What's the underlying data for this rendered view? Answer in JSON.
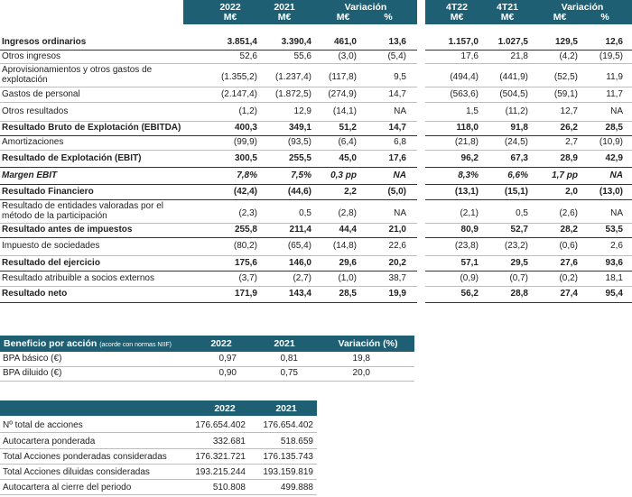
{
  "main": {
    "headers": {
      "y2022": "2022",
      "y2021": "2021",
      "var": "Variación",
      "meur": "M€",
      "pct": "%",
      "q4_22": "4T22",
      "q4_21": "4T21"
    },
    "rows": [
      {
        "label": "Ingresos ordinarios",
        "bold": true,
        "italic": false,
        "v": [
          "3.851,4",
          "3.390,4",
          "461,0",
          "13,6",
          "1.157,0",
          "1.027,5",
          "129,5",
          "12,6"
        ]
      },
      {
        "label": "Otros ingresos",
        "bold": false,
        "italic": false,
        "v": [
          "52,6",
          "55,6",
          "(3,0)",
          "(5,4)",
          "17,6",
          "21,8",
          "(4,2)",
          "(19,5)"
        ]
      },
      {
        "label": "Aprovisionamientos y otros gastos de explotación",
        "bold": false,
        "italic": false,
        "v": [
          "(1.355,2)",
          "(1.237,4)",
          "(117,8)",
          "9,5",
          "(494,4)",
          "(441,9)",
          "(52,5)",
          "11,9"
        ]
      },
      {
        "label": "Gastos de personal",
        "bold": false,
        "italic": false,
        "v": [
          "(2.147,4)",
          "(1.872,5)",
          "(274,9)",
          "14,7",
          "(563,6)",
          "(504,5)",
          "(59,1)",
          "11,7"
        ]
      },
      {
        "label": "Otros resultados",
        "bold": false,
        "italic": false,
        "v": [
          "(1,2)",
          "12,9",
          "(14,1)",
          "NA",
          "1,5",
          "(11,2)",
          "12,7",
          "NA"
        ]
      },
      {
        "label": "Resultado Bruto de Explotación (EBITDA)",
        "bold": true,
        "italic": false,
        "v": [
          "400,3",
          "349,1",
          "51,2",
          "14,7",
          "118,0",
          "91,8",
          "26,2",
          "28,5"
        ]
      },
      {
        "label": "Amortizaciones",
        "bold": false,
        "italic": false,
        "v": [
          "(99,9)",
          "(93,5)",
          "(6,4)",
          "6,8",
          "(21,8)",
          "(24,5)",
          "2,7",
          "(10,9)"
        ]
      },
      {
        "label": "Resultado de Explotación (EBIT)",
        "bold": true,
        "italic": false,
        "v": [
          "300,5",
          "255,5",
          "45,0",
          "17,6",
          "96,2",
          "67,3",
          "28,9",
          "42,9"
        ]
      },
      {
        "label": "Margen EBIT",
        "bold": true,
        "italic": true,
        "v": [
          "7,8%",
          "7,5%",
          "0,3 pp",
          "NA",
          "8,3%",
          "6,6%",
          "1,7 pp",
          "NA"
        ]
      },
      {
        "label": "Resultado Financiero",
        "bold": true,
        "italic": false,
        "v": [
          "(42,4)",
          "(44,6)",
          "2,2",
          "(5,0)",
          "(13,1)",
          "(15,1)",
          "2,0",
          "(13,0)"
        ]
      },
      {
        "label": "Resultado de entidades valoradas por el método de la participación",
        "bold": false,
        "italic": false,
        "v": [
          "(2,3)",
          "0,5",
          "(2,8)",
          "NA",
          "(2,1)",
          "0,5",
          "(2,6)",
          "NA"
        ]
      },
      {
        "label": "Resultado antes de impuestos",
        "bold": true,
        "italic": false,
        "v": [
          "255,8",
          "211,4",
          "44,4",
          "21,0",
          "80,9",
          "52,7",
          "28,2",
          "53,5"
        ]
      },
      {
        "label": "Impuesto de sociedades",
        "bold": false,
        "italic": false,
        "v": [
          "(80,2)",
          "(65,4)",
          "(14,8)",
          "22,6",
          "(23,8)",
          "(23,2)",
          "(0,6)",
          "2,6"
        ]
      },
      {
        "label": "Resultado del ejercicio",
        "bold": true,
        "italic": false,
        "v": [
          "175,6",
          "146,0",
          "29,6",
          "20,2",
          "57,1",
          "29,5",
          "27,6",
          "93,6"
        ]
      },
      {
        "label": "Resultado atribuible a socios externos",
        "bold": false,
        "italic": false,
        "v": [
          "(3,7)",
          "(2,7)",
          "(1,0)",
          "38,7",
          "(0,9)",
          "(0,7)",
          "(0,2)",
          "18,1"
        ]
      },
      {
        "label": "Resultado neto",
        "bold": true,
        "italic": false,
        "v": [
          "171,9",
          "143,4",
          "28,5",
          "19,9",
          "56,2",
          "28,8",
          "27,4",
          "95,4"
        ]
      }
    ]
  },
  "bpa": {
    "title": "Beneficio por acción",
    "note": "(acorde con normas NIIF)",
    "h2022": "2022",
    "h2021": "2021",
    "hvar": "Variación (%)",
    "rows": [
      {
        "label": "BPA básico (€)",
        "v": [
          "0,97",
          "0,81",
          "19,8"
        ]
      },
      {
        "label": "BPA diluido (€)",
        "v": [
          "0,90",
          "0,75",
          "20,0"
        ]
      }
    ]
  },
  "shares": {
    "h2022": "2022",
    "h2021": "2021",
    "rows": [
      {
        "label": "Nº total de acciones",
        "v": [
          "176.654.402",
          "176.654.402"
        ]
      },
      {
        "label": "Autocartera ponderada",
        "v": [
          "332.681",
          "518.659"
        ]
      },
      {
        "label": "Total Acciones ponderadas consideradas",
        "v": [
          "176.321.721",
          "176.135.743"
        ]
      },
      {
        "label": "Total Acciones diluidas consideradas",
        "v": [
          "193.215.244",
          "193.159.819"
        ]
      },
      {
        "label": "Autocartera al cierre del periodo",
        "v": [
          "510.808",
          "499.888"
        ]
      }
    ]
  },
  "colors": {
    "header": "#1f5f73",
    "line": "#bdbdbd",
    "text": "#222222"
  }
}
